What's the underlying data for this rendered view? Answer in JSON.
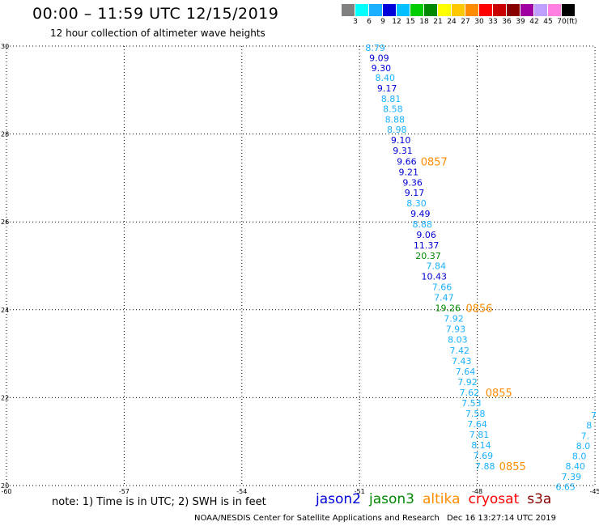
{
  "header": {
    "title": "00:00 – 11:59 UTC 12/15/2019",
    "subtitle": "12 hour collection of altimeter wave heights"
  },
  "legend": {
    "colors": [
      "#808080",
      "#00ffff",
      "#1ab0ff",
      "#0000d8",
      "#00c0ff",
      "#00cc00",
      "#008800",
      "#ffff00",
      "#ffc800",
      "#ff8c00",
      "#ff0000",
      "#c80000",
      "#880000",
      "#a000a0",
      "#c0a0ff",
      "#ff80e0",
      "#000000"
    ],
    "labels": [
      "3",
      "6",
      "9",
      "12",
      "15",
      "18",
      "21",
      "24",
      "27",
      "30",
      "33",
      "36",
      "39",
      "42",
      "45",
      "70",
      "(ft)"
    ]
  },
  "map": {
    "lon_range": [
      -60,
      -45
    ],
    "lat_range": [
      20,
      30
    ],
    "lon_ticks": [
      "-60",
      "-57",
      "-54",
      "-51",
      "-48",
      "-45"
    ],
    "lat_ticks": [
      "30",
      "28",
      "26",
      "24",
      "22",
      "20"
    ],
    "grid": "dotted"
  },
  "observations": [
    {
      "text": "8.79",
      "lon": -50.6,
      "lat": 29.96,
      "color": "#1ab0ff"
    },
    {
      "text": "9.09",
      "lon": -50.5,
      "lat": 29.73,
      "color": "#0000d8"
    },
    {
      "text": "9.30",
      "lon": -50.45,
      "lat": 29.5,
      "color": "#0000d8"
    },
    {
      "text": "8.40",
      "lon": -50.35,
      "lat": 29.28,
      "color": "#1ab0ff"
    },
    {
      "text": "9.17",
      "lon": -50.3,
      "lat": 29.04,
      "color": "#0000d8"
    },
    {
      "text": "8.81",
      "lon": -50.2,
      "lat": 28.8,
      "color": "#1ab0ff"
    },
    {
      "text": "8.58",
      "lon": -50.15,
      "lat": 28.57,
      "color": "#1ab0ff"
    },
    {
      "text": "8.88",
      "lon": -50.1,
      "lat": 28.33,
      "color": "#1ab0ff"
    },
    {
      "text": "8.98",
      "lon": -50.05,
      "lat": 28.1,
      "color": "#1ab0ff"
    },
    {
      "text": "9.10",
      "lon": -49.95,
      "lat": 27.86,
      "color": "#0000d8"
    },
    {
      "text": "9.31",
      "lon": -49.9,
      "lat": 27.62,
      "color": "#0000d8"
    },
    {
      "text": "9.66",
      "lon": -49.8,
      "lat": 27.38,
      "color": "#0000d8"
    },
    {
      "text": "9.21",
      "lon": -49.75,
      "lat": 27.14,
      "color": "#0000d8"
    },
    {
      "text": "9.36",
      "lon": -49.65,
      "lat": 26.9,
      "color": "#0000d8"
    },
    {
      "text": "9.17",
      "lon": -49.6,
      "lat": 26.67,
      "color": "#0000d8"
    },
    {
      "text": "8.30",
      "lon": -49.55,
      "lat": 26.43,
      "color": "#1ab0ff"
    },
    {
      "text": "9.49",
      "lon": -49.45,
      "lat": 26.19,
      "color": "#0000d8"
    },
    {
      "text": "8.88",
      "lon": -49.4,
      "lat": 25.95,
      "color": "#1ab0ff"
    },
    {
      "text": "9.06",
      "lon": -49.3,
      "lat": 25.71,
      "color": "#0000d8"
    },
    {
      "text": "11.37",
      "lon": -49.3,
      "lat": 25.47,
      "color": "#0000d8"
    },
    {
      "text": "20.37",
      "lon": -49.25,
      "lat": 25.23,
      "color": "#008800"
    },
    {
      "text": "7.84",
      "lon": -49.05,
      "lat": 25.0,
      "color": "#1ab0ff"
    },
    {
      "text": "10.43",
      "lon": -49.1,
      "lat": 24.76,
      "color": "#0000d8"
    },
    {
      "text": "7.66",
      "lon": -48.9,
      "lat": 24.52,
      "color": "#1ab0ff"
    },
    {
      "text": "7.47",
      "lon": -48.85,
      "lat": 24.28,
      "color": "#1ab0ff"
    },
    {
      "text": "19.26",
      "lon": -48.75,
      "lat": 24.04,
      "color": "#008800"
    },
    {
      "text": "7.92",
      "lon": -48.6,
      "lat": 23.8,
      "color": "#1ab0ff"
    },
    {
      "text": "7.93",
      "lon": -48.55,
      "lat": 23.56,
      "color": "#1ab0ff"
    },
    {
      "text": "8.03",
      "lon": -48.5,
      "lat": 23.32,
      "color": "#1ab0ff"
    },
    {
      "text": "7.42",
      "lon": -48.45,
      "lat": 23.08,
      "color": "#1ab0ff"
    },
    {
      "text": "7.43",
      "lon": -48.4,
      "lat": 22.84,
      "color": "#1ab0ff"
    },
    {
      "text": "7.64",
      "lon": -48.3,
      "lat": 22.6,
      "color": "#1ab0ff"
    },
    {
      "text": "7.92",
      "lon": -48.25,
      "lat": 22.36,
      "color": "#1ab0ff"
    },
    {
      "text": "7.62",
      "lon": -48.2,
      "lat": 22.12,
      "color": "#1ab0ff"
    },
    {
      "text": "7.53",
      "lon": -48.15,
      "lat": 21.88,
      "color": "#1ab0ff"
    },
    {
      "text": "7.58",
      "lon": -48.05,
      "lat": 21.64,
      "color": "#1ab0ff"
    },
    {
      "text": "7.64",
      "lon": -48.0,
      "lat": 21.4,
      "color": "#1ab0ff"
    },
    {
      "text": "7.81",
      "lon": -47.95,
      "lat": 21.16,
      "color": "#1ab0ff"
    },
    {
      "text": "8.14",
      "lon": -47.9,
      "lat": 20.92,
      "color": "#1ab0ff"
    },
    {
      "text": "7.69",
      "lon": -47.85,
      "lat": 20.68,
      "color": "#1ab0ff"
    },
    {
      "text": "7.88",
      "lon": -47.8,
      "lat": 20.44,
      "color": "#1ab0ff"
    },
    {
      "text": "7",
      "lon": -45.03,
      "lat": 21.6,
      "color": "#1ab0ff"
    },
    {
      "text": "8",
      "lon": -45.15,
      "lat": 21.37,
      "color": "#1ab0ff"
    },
    {
      "text": "7.",
      "lon": -45.25,
      "lat": 21.13,
      "color": "#1ab0ff"
    },
    {
      "text": "8.0",
      "lon": -45.3,
      "lat": 20.9,
      "color": "#1ab0ff"
    },
    {
      "text": "8.0",
      "lon": -45.4,
      "lat": 20.67,
      "color": "#1ab0ff"
    },
    {
      "text": "8.40",
      "lon": -45.5,
      "lat": 20.44,
      "color": "#1ab0ff"
    },
    {
      "text": "7.39",
      "lon": -45.6,
      "lat": 20.2,
      "color": "#1ab0ff"
    },
    {
      "text": "6.65",
      "lon": -45.75,
      "lat": 19.97,
      "color": "#1ab0ff"
    }
  ],
  "time_labels": [
    {
      "text": "0857",
      "lon": -49.1,
      "lat": 27.38,
      "color": "#ff8c00"
    },
    {
      "text": "0856",
      "lon": -47.95,
      "lat": 24.04,
      "color": "#ff8c00"
    },
    {
      "text": "0855",
      "lon": -47.45,
      "lat": 22.12,
      "color": "#ff8c00"
    },
    {
      "text": "0855",
      "lon": -47.1,
      "lat": 20.44,
      "color": "#ff8c00"
    }
  ],
  "footer": {
    "note": "note: 1) Time is in UTC; 2) SWH is in feet",
    "satellites": [
      {
        "name": "jason2",
        "color": "#0000d8"
      },
      {
        "name": "jason3",
        "color": "#008800"
      },
      {
        "name": "altika",
        "color": "#ff8c00"
      },
      {
        "name": "cryosat",
        "color": "#ff0000"
      },
      {
        "name": "s3a",
        "color": "#880000"
      }
    ],
    "credit": "NOAA/NESDIS Center for Satellite Applications and Research",
    "timestamp": "Dec 16 13:27:14 UTC 2019"
  }
}
